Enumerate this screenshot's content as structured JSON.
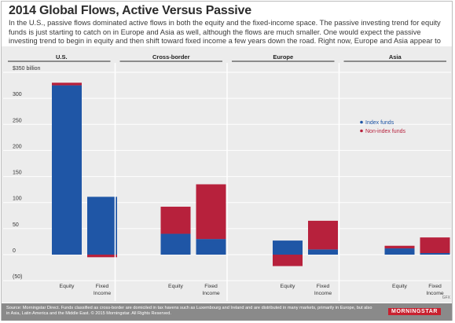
{
  "header": {
    "title": "2014 Global Flows, Active Versus Passive",
    "subtitle": "In the U.S., passive flows dominated active flows in both the equity and the fixed-income space. The passive investing trend for equity funds is just starting to catch on in Europe and Asia as well, although the flows are much smaller. One would expect the passive investing trend to begin in equity and then shift toward fixed income a few years down the road. Right now, Europe and Asia appear to follow this pattern."
  },
  "footer": {
    "source": "Source: Morningstar Direct. Funds classified as cross-border are domiciled in tax havens such as Luxembourg and Ireland and are distributed in many markets, primarily in Europe, but also in Asia, Latin America and the Middle East. © 2015 Morningstar. All Rights Reserved.",
    "logo": "MORNINGSTAR",
    "note": "GFX"
  },
  "colors": {
    "index": "#1f56a6",
    "non_index": "#b7213c",
    "background": "#ececec",
    "grid": "#ffffff",
    "divider": "#2a2a2a"
  },
  "chart_data": {
    "type": "bar",
    "stacked": true,
    "title": "2014 Global Flows, Active Versus Passive",
    "ylim": [
      -50,
      350
    ],
    "yticks": [
      -50,
      0,
      50,
      100,
      150,
      200,
      250,
      300,
      350
    ],
    "ytick_labels": [
      "(50)",
      "0",
      "50",
      "100",
      "150",
      "200",
      "250",
      "300",
      "$350 billion"
    ],
    "grid": true,
    "legend_position": "right",
    "groups": [
      "U.S.",
      "Cross-border",
      "Europe",
      "Asia"
    ],
    "categories": [
      "Equity",
      "Fixed Income"
    ],
    "category_labels": [
      [
        "Equity"
      ],
      [
        "Fixed",
        "Income"
      ]
    ],
    "series": [
      {
        "name": "Index funds",
        "values": [
          [
            325,
            111
          ],
          [
            40,
            30
          ],
          [
            27,
            10
          ],
          [
            12,
            3
          ]
        ]
      },
      {
        "name": "Non-index funds",
        "values": [
          [
            5,
            -5
          ],
          [
            52,
            105
          ],
          [
            -22,
            55
          ],
          [
            5,
            30
          ]
        ]
      }
    ]
  }
}
